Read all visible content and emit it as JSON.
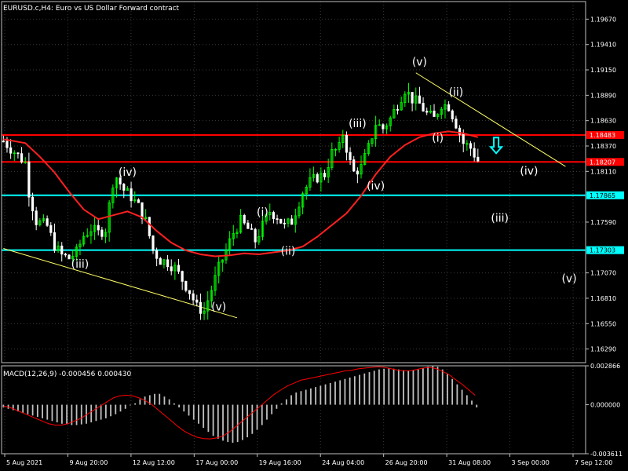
{
  "header": {
    "title": "EURUSD.c,H4:  Euro vs US Dollar Forward contract"
  },
  "macd_panel": {
    "title": "MACD(12,26,9) -0.000456 0.000430"
  },
  "colors": {
    "background": "#000000",
    "bull": "#00ff00",
    "bear": "#ffffff",
    "ma": "#ff2020",
    "resistance": "#ff0000",
    "support": "#00ffff",
    "trendline": "#ffff66",
    "label_box_red": "#ff0000",
    "label_box_cyan": "#00ffff",
    "hist": "#c0c0c0",
    "signal": "#ff0000",
    "arrow": "#00ffff"
  },
  "chart_data": [
    {
      "type": "candlestick",
      "title": "EURUSD.c,H4:  Euro vs US Dollar Forward contract",
      "symbol": "EURUSD.c",
      "timeframe": "H4",
      "ylim": [
        1.1615,
        1.1985
      ],
      "y_ticks": [
        "1.19670",
        "1.19410",
        "1.19150",
        "1.18890",
        "1.18630",
        "1.18370",
        "1.18110",
        "1.17590",
        "1.17070",
        "1.16810",
        "1.16550",
        "1.16290"
      ],
      "x_ticks": [
        "5 Aug 2021",
        "9 Aug 20:00",
        "12 Aug 12:00",
        "17 Aug 00:00",
        "19 Aug 16:00",
        "24 Aug 04:00",
        "26 Aug 20:00",
        "31 Aug 08:00",
        "3 Sep 00:00",
        "7 Sep 12:00"
      ],
      "price_path": [
        [
          0,
          1.1842
        ],
        [
          6,
          1.182
        ],
        [
          7,
          1.179
        ],
        [
          9,
          1.176
        ],
        [
          12,
          1.1755
        ],
        [
          14,
          1.1735
        ],
        [
          16,
          1.1725
        ],
        [
          18,
          1.1722
        ],
        [
          20,
          1.1728
        ],
        [
          22,
          1.1745
        ],
        [
          24,
          1.1752
        ],
        [
          26,
          1.1748
        ],
        [
          28,
          1.1752
        ],
        [
          30,
          1.18
        ],
        [
          31,
          1.1805
        ],
        [
          33,
          1.1792
        ],
        [
          35,
          1.1785
        ],
        [
          37,
          1.1775
        ],
        [
          39,
          1.176
        ],
        [
          41,
          1.173
        ],
        [
          43,
          1.172
        ],
        [
          45,
          1.1718
        ],
        [
          47,
          1.1712
        ],
        [
          49,
          1.17
        ],
        [
          51,
          1.1688
        ],
        [
          53,
          1.1672
        ],
        [
          55,
          1.1668
        ],
        [
          57,
          1.169
        ],
        [
          59,
          1.1712
        ],
        [
          61,
          1.173
        ],
        [
          63,
          1.1748
        ],
        [
          65,
          1.176
        ],
        [
          67,
          1.1752
        ],
        [
          69,
          1.174
        ],
        [
          71,
          1.1755
        ],
        [
          73,
          1.177
        ],
        [
          75,
          1.1765
        ],
        [
          77,
          1.1755
        ],
        [
          79,
          1.176
        ],
        [
          80,
          1.177
        ],
        [
          82,
          1.179
        ],
        [
          84,
          1.18
        ],
        [
          86,
          1.1805
        ],
        [
          88,
          1.1808
        ],
        [
          90,
          1.183
        ],
        [
          92,
          1.1835
        ],
        [
          93,
          1.185
        ],
        [
          95,
          1.182
        ],
        [
          96,
          1.181
        ],
        [
          98,
          1.1815
        ],
        [
          100,
          1.1835
        ],
        [
          102,
          1.186
        ],
        [
          104,
          1.1855
        ],
        [
          106,
          1.1865
        ],
        [
          108,
          1.188
        ],
        [
          110,
          1.1895
        ],
        [
          112,
          1.1885
        ],
        [
          114,
          1.188
        ],
        [
          116,
          1.187
        ],
        [
          118,
          1.1865
        ],
        [
          120,
          1.188
        ],
        [
          122,
          1.1878
        ],
        [
          124,
          1.186
        ],
        [
          126,
          1.184
        ],
        [
          128,
          1.1835
        ],
        [
          130,
          1.1822
        ]
      ],
      "ma_path": [
        [
          0,
          1.1844
        ],
        [
          6,
          1.184
        ],
        [
          10,
          1.1826
        ],
        [
          14,
          1.181
        ],
        [
          18,
          1.179
        ],
        [
          22,
          1.1772
        ],
        [
          26,
          1.1762
        ],
        [
          30,
          1.1766
        ],
        [
          34,
          1.177
        ],
        [
          38,
          1.1764
        ],
        [
          42,
          1.175
        ],
        [
          46,
          1.1738
        ],
        [
          50,
          1.173
        ],
        [
          54,
          1.1726
        ],
        [
          58,
          1.1724
        ],
        [
          62,
          1.1725
        ],
        [
          66,
          1.1727
        ],
        [
          70,
          1.1726
        ],
        [
          74,
          1.1728
        ],
        [
          78,
          1.173
        ],
        [
          82,
          1.1734
        ],
        [
          86,
          1.1744
        ],
        [
          90,
          1.1756
        ],
        [
          94,
          1.1768
        ],
        [
          98,
          1.1786
        ],
        [
          102,
          1.1808
        ],
        [
          106,
          1.1826
        ],
        [
          110,
          1.1838
        ],
        [
          114,
          1.1846
        ],
        [
          118,
          1.185
        ],
        [
          122,
          1.1852
        ],
        [
          126,
          1.185
        ],
        [
          130,
          1.1846
        ]
      ],
      "bars_total": 160,
      "horizontal_lines": [
        {
          "price": 1.18483,
          "label": "1.18483",
          "kind": "resistance"
        },
        {
          "price": 1.18207,
          "label": "1.18207",
          "kind": "resistance"
        },
        {
          "price": 1.17865,
          "label": "1.17865",
          "kind": "support"
        },
        {
          "price": 1.17303,
          "label": "1.17303",
          "kind": "support"
        }
      ],
      "trend_lines": [
        {
          "from": [
            0,
            1.1732
          ],
          "to": [
            64,
            1.1661
          ]
        },
        {
          "from": [
            113,
            1.1912
          ],
          "to": [
            154,
            1.1816
          ]
        }
      ],
      "wave_labels": [
        {
          "text": "(iv)",
          "bar": 34,
          "price": 1.18065
        },
        {
          "text": "(iii)",
          "bar": 21,
          "price": 1.17125
        },
        {
          "text": "(v)",
          "bar": 59,
          "price": 1.16685
        },
        {
          "text": "(i)",
          "bar": 71,
          "price": 1.17655
        },
        {
          "text": "(ii)",
          "bar": 78,
          "price": 1.17255
        },
        {
          "text": "(iii)",
          "bar": 97,
          "price": 1.18565
        },
        {
          "text": "(iv)",
          "bar": 102,
          "price": 1.17925
        },
        {
          "text": "(v)",
          "bar": 114,
          "price": 1.19195
        },
        {
          "text": "(ii)",
          "bar": 124,
          "price": 1.18885
        },
        {
          "text": "(i)",
          "bar": 119,
          "price": 1.18415
        },
        {
          "text": "(iv)",
          "bar": 144,
          "price": 1.18075
        },
        {
          "text": "(iii)",
          "bar": 136,
          "price": 1.17595
        },
        {
          "text": "(v)",
          "bar": 155,
          "price": 1.16975
        }
      ],
      "down_arrow": {
        "bar": 135,
        "price": 1.1836
      }
    },
    {
      "type": "bar",
      "title": "MACD(12,26,9) -0.000456 0.000430",
      "series": [
        {
          "name": "MACD(12,26,9)",
          "values": [
            -0.0002,
            -0.0003,
            -0.0004,
            -0.0005,
            -0.0006,
            -0.0007,
            -0.0008,
            -0.0009,
            -0.001,
            -0.0011,
            -0.0012,
            -0.0013,
            -0.0014,
            -0.00145,
            -0.0015,
            -0.0015,
            -0.00145,
            -0.0014,
            -0.0013,
            -0.0012,
            -0.0011,
            -0.001,
            -0.00085,
            -0.0007,
            -0.0005,
            -0.0003,
            -5e-05,
            0.0001,
            0.0004,
            0.0006,
            0.0007,
            0.0008,
            0.0008,
            0.0006,
            0.0004,
            0.0001,
            -0.0002,
            -0.0005,
            -0.0008,
            -0.0011,
            -0.0014,
            -0.0017,
            -0.002,
            -0.0023,
            -0.0025,
            -0.00265,
            -0.00275,
            -0.0028,
            -0.00275,
            -0.0026,
            -0.0024,
            -0.00215,
            -0.00185,
            -0.0015,
            -0.0011,
            -0.0007,
            -0.0003,
            0.0001,
            0.0004,
            0.0007,
            0.0009,
            0.001,
            0.0011,
            0.0012,
            0.0013,
            0.0014,
            0.0015,
            0.0016,
            0.0017,
            0.0018,
            0.0019,
            0.002,
            0.0021,
            0.0022,
            0.0023,
            0.0024,
            0.0025,
            0.0026,
            0.00265,
            0.0027,
            0.00265,
            0.0026,
            0.00255,
            0.0025,
            0.00255,
            0.0026,
            0.0027,
            0.0028,
            0.00285,
            0.0028,
            0.0026,
            0.0023,
            0.0019,
            0.0015,
            0.0011,
            0.0007,
            0.0003,
            -0.0002
          ]
        },
        {
          "name": "Signal",
          "values": [
            -0.0001,
            -0.0002,
            -0.0004,
            -0.0006,
            -0.0008,
            -0.001,
            -0.0012,
            -0.0014,
            -0.0015,
            -0.0015,
            -0.0014,
            -0.0012,
            -0.001,
            -0.0007,
            -0.0004,
            -0.0001,
            0.0002,
            0.0005,
            0.00065,
            0.0007,
            0.00065,
            0.0005,
            0.0003,
            0.0,
            -0.0004,
            -0.0008,
            -0.0012,
            -0.0016,
            -0.00195,
            -0.0022,
            -0.0024,
            -0.0025,
            -0.00252,
            -0.00245,
            -0.0023,
            -0.002,
            -0.0016,
            -0.0012,
            -0.0008,
            -0.0004,
            0.0,
            0.0004,
            0.0008,
            0.0011,
            0.0014,
            0.0016,
            0.0018,
            0.0019,
            0.002,
            0.0021,
            0.0022,
            0.0023,
            0.0024,
            0.0025,
            0.00255,
            0.00265,
            0.0027,
            0.00275,
            0.0028,
            0.00275,
            0.00265,
            0.00255,
            0.0025,
            0.0025,
            0.0026,
            0.0027,
            0.00275,
            0.00265,
            0.00245,
            0.0022,
            0.00185,
            0.0015,
            0.0011,
            0.0007
          ]
        }
      ],
      "ylim": [
        -0.003611,
        0.002866
      ],
      "y_ticks": [
        "0.002866",
        "0.000000",
        "-0.003611"
      ]
    }
  ]
}
